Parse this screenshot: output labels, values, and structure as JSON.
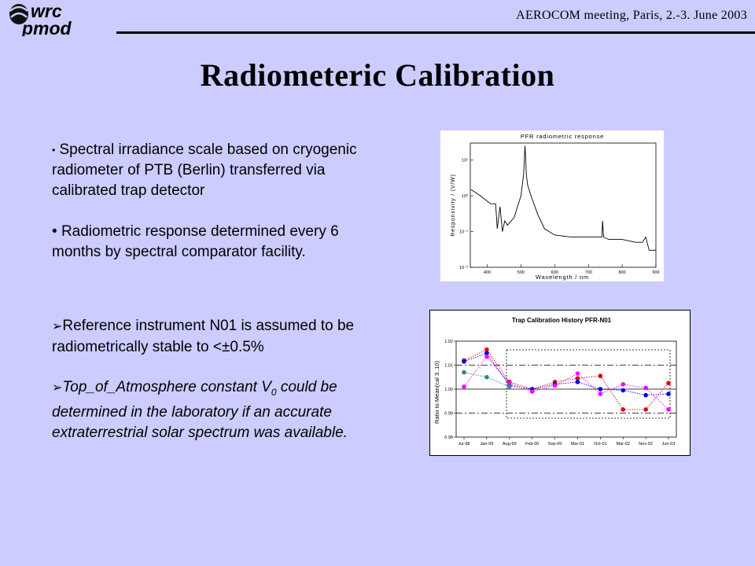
{
  "header": {
    "logo_top": "wrc",
    "logo_bottom": "pmod",
    "meeting": "AEROCOM meeting, Paris, 2.-3. June 2003"
  },
  "title": "Radiometeric Calibration",
  "bullets_top": [
    "Spectral irradiance scale based on cryogenic radiometer of PTB (Berlin) transferred via calibrated trap detector",
    "Radiometric response determined every 6 months by spectral comparator facility."
  ],
  "bullets_bottom": [
    {
      "text": "Reference instrument N01 is assumed to be radiometrically stable to <±0.5%"
    },
    {
      "pre": "Top_of_Atmosphere constant V",
      "sub": "0",
      "post": " could be determined in the laboratory if an accurate extraterrestrial solar spectrum was available."
    }
  ],
  "chart_data": [
    {
      "type": "line",
      "title": "PFR radiometric response",
      "xlabel": "Wavelength / nm",
      "ylabel": "Responsivity / (V/W)",
      "xlim": [
        350,
        900
      ],
      "ytick_labels": [
        "10¹",
        "10⁰",
        "10⁻¹",
        "10⁻²"
      ],
      "yscale": "log",
      "ylim": [
        0.01,
        30
      ],
      "xticks": [
        400,
        500,
        600,
        700,
        800,
        900
      ],
      "x": [
        352,
        380,
        410,
        425,
        430,
        438,
        445,
        452,
        460,
        480,
        500,
        508,
        512,
        514,
        516,
        520,
        530,
        550,
        570,
        600,
        650,
        700,
        740,
        742,
        745,
        760,
        800,
        840,
        860,
        870,
        880,
        900
      ],
      "y": [
        1.5,
        1.0,
        0.6,
        0.6,
        0.12,
        0.5,
        0.1,
        0.2,
        0.15,
        0.25,
        1.0,
        4.0,
        25.0,
        12.0,
        4.0,
        2.0,
        1.0,
        0.3,
        0.12,
        0.08,
        0.07,
        0.07,
        0.07,
        0.2,
        0.07,
        0.06,
        0.06,
        0.05,
        0.05,
        0.07,
        0.03,
        0.03
      ],
      "grid": false
    },
    {
      "type": "scatter",
      "title": "Trap Calibration History PFR-N01",
      "ylabel": "Ratio to Mean(cal 3..10)",
      "categories": [
        "Jul-98",
        "Jan-99",
        "Aug-99",
        "Feb-00",
        "Sep-00",
        "Mar-01",
        "Oct-01",
        "Mar-02",
        "Nov-02",
        "Jun-03"
      ],
      "ylim": [
        0.98,
        1.02
      ],
      "yticks": [
        0.98,
        0.99,
        1.0,
        1.01,
        1.02
      ],
      "ytick_labels": [
        "0.98",
        "0.99",
        "1.00",
        "1.01",
        "1.02"
      ],
      "threshold_lines": [
        0.99,
        1.0,
        1.01
      ],
      "series": [
        {
          "color": "#e00000",
          "values": [
            1.012,
            1.0165,
            1.003,
            1.0,
            1.003,
            1.0045,
            1.0055,
            0.9915,
            0.9915,
            1.0025
          ]
        },
        {
          "color": "#0000e0",
          "values": [
            1.0115,
            1.015,
            1.0015,
            1.0,
            1.002,
            1.003,
            1.0,
            0.9995,
            0.9975,
            0.998
          ]
        },
        {
          "color": "#ff00ff",
          "values": [
            1.001,
            1.0135,
            1.0025,
            0.999,
            1.0015,
            1.0065,
            0.998,
            1.002,
            1.0005,
            0.9915
          ]
        },
        {
          "color": "#2a8a8a",
          "values": [
            1.007,
            1.005,
            1.001
          ]
        }
      ]
    }
  ]
}
